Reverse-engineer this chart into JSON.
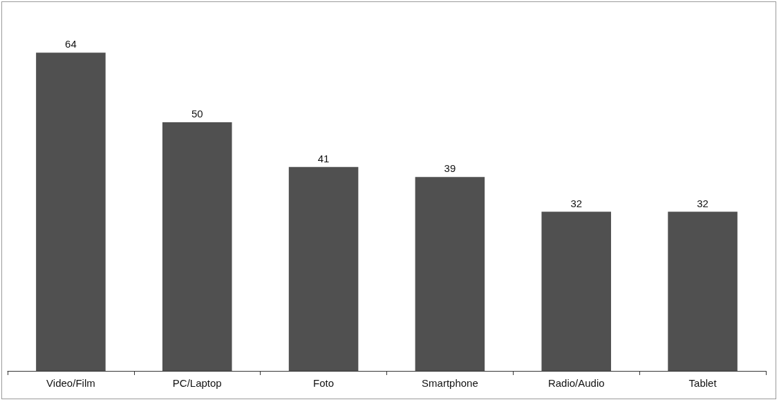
{
  "chart_data": {
    "type": "bar",
    "categories": [
      "Video/Film",
      "PC/Laptop",
      "Foto",
      "Smartphone",
      "Radio/Audio",
      "Tablet"
    ],
    "values": [
      64,
      50,
      41,
      39,
      32,
      32
    ],
    "color": "#505050",
    "data_labels": true
  }
}
